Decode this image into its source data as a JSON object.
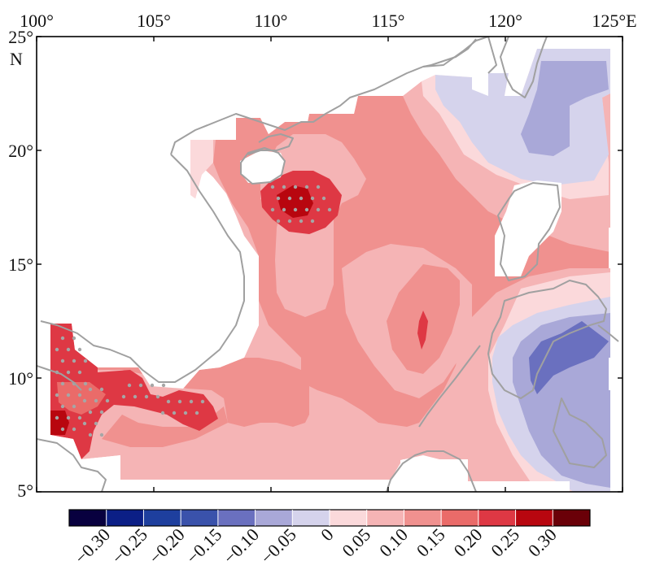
{
  "map": {
    "lon_ticks": [
      "100°",
      "105°",
      "110°",
      "115°",
      "120°",
      "125°E"
    ],
    "lat_ticks": [
      "25°",
      "20°",
      "15°",
      "10°",
      "5°"
    ],
    "lat_unit": "N",
    "lon_range": [
      100,
      125
    ],
    "lat_range": [
      5,
      25
    ],
    "coastline_color": "#a0a0a0",
    "stipple_color": "#a6a6a6"
  },
  "colorbar": {
    "labels": [
      "−0.30",
      "−0.25",
      "−0.20",
      "−0.15",
      "−0.10",
      "−0.05",
      "0",
      "0.05",
      "0.10",
      "0.15",
      "0.20",
      "0.25",
      "0.30"
    ],
    "colors": [
      "#08003f",
      "#0b1f86",
      "#1e3f9e",
      "#3a52ab",
      "#6a70bf",
      "#a9a8d8",
      "#d5d3ec",
      "#fbd9db",
      "#f5b4b5",
      "#f0918f",
      "#ea6b69",
      "#de3844",
      "#b8060f",
      "#6a0008"
    ]
  }
}
